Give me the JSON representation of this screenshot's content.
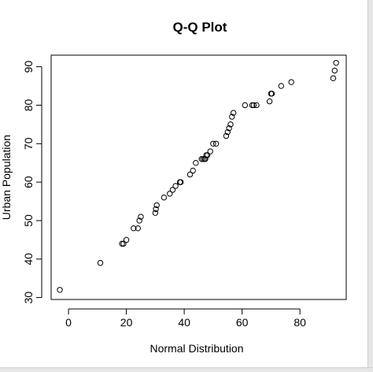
{
  "chart_data": {
    "type": "scatter",
    "title": "Q-Q Plot",
    "xlabel": "Normal Distribution",
    "ylabel": "Urban Population",
    "xlim": [
      -6,
      96
    ],
    "ylim": [
      29.5,
      93
    ],
    "xticks": [
      0,
      20,
      40,
      60,
      80
    ],
    "yticks": [
      30,
      40,
      50,
      60,
      70,
      80,
      90
    ],
    "grid": false,
    "legend": "none",
    "marker": "open-circle",
    "x": [
      -3,
      11,
      18.5,
      19,
      20,
      22.5,
      24,
      24.5,
      25,
      30,
      30.2,
      30.5,
      33,
      35,
      36,
      37,
      38.5,
      38.8,
      42,
      43,
      44,
      46,
      46.5,
      47,
      47.3,
      47.6,
      48,
      49,
      50,
      51,
      54.5,
      55,
      55.5,
      56,
      56.5,
      57,
      61,
      63.5,
      64,
      65,
      69.5,
      70,
      70.3,
      73.5,
      77,
      91.5,
      92,
      92.5
    ],
    "y": [
      32,
      39,
      44,
      44,
      45,
      48,
      48,
      50,
      51,
      52,
      53,
      54,
      56,
      57,
      58,
      59,
      60,
      60,
      62,
      63,
      65,
      66,
      66,
      66,
      66,
      67,
      67,
      68,
      70,
      70,
      72,
      73,
      74,
      75,
      77,
      78,
      80,
      80,
      80,
      80,
      81,
      83,
      83,
      85,
      86,
      87,
      89,
      91
    ]
  }
}
